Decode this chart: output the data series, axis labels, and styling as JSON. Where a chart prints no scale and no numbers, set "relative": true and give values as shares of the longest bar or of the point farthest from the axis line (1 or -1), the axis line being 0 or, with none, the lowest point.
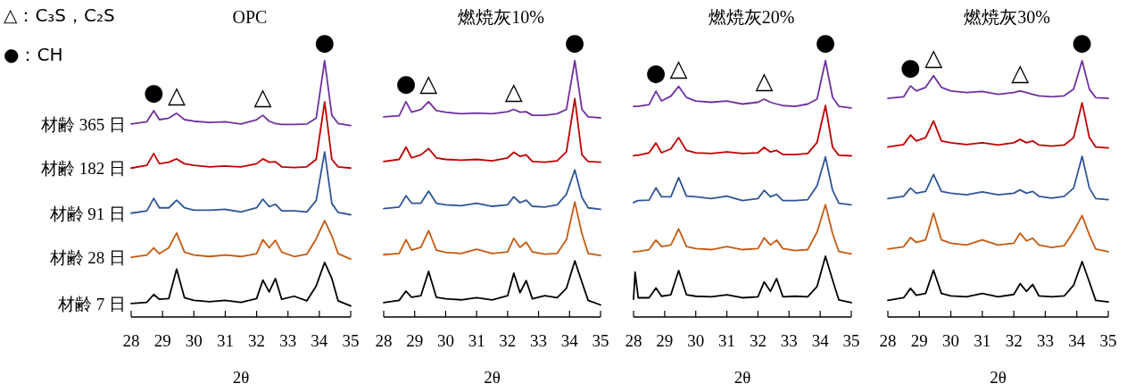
{
  "chart_data": [
    {
      "type": "line",
      "title": "OPC",
      "xlabel": "2θ",
      "relative": true,
      "legend": false,
      "tick_labels": "x",
      "xlim": [
        28,
        35
      ],
      "xticks": [
        28,
        29,
        30,
        31,
        32,
        33,
        34,
        35
      ],
      "x": [
        28,
        28.5,
        28.72,
        28.9,
        29.2,
        29.45,
        29.7,
        30,
        30.5,
        31,
        31.5,
        32,
        32.2,
        32.4,
        32.6,
        32.8,
        33.2,
        33.6,
        33.9,
        34.17,
        34.4,
        34.6,
        35
      ],
      "series": [
        {
          "name": "材齢 365 日",
          "color": "#7030a0",
          "values": [
            0.753,
            0.762,
            0.805,
            0.77,
            0.776,
            0.795,
            0.77,
            0.764,
            0.759,
            0.762,
            0.753,
            0.77,
            0.787,
            0.764,
            0.755,
            0.751,
            0.751,
            0.753,
            0.776,
            1.0,
            0.787,
            0.755,
            0.747
          ]
        },
        {
          "name": "材齢 182 日",
          "color": "#c00000",
          "values": [
            0.581,
            0.592,
            0.638,
            0.598,
            0.604,
            0.617,
            0.598,
            0.592,
            0.586,
            0.589,
            0.586,
            0.598,
            0.617,
            0.604,
            0.606,
            0.586,
            0.583,
            0.586,
            0.615,
            0.839,
            0.615,
            0.586,
            0.581
          ]
        },
        {
          "name": "材齢 91 日",
          "color": "#2f5597",
          "values": [
            0.405,
            0.414,
            0.463,
            0.426,
            0.426,
            0.456,
            0.426,
            0.417,
            0.417,
            0.42,
            0.41,
            0.426,
            0.46,
            0.431,
            0.44,
            0.414,
            0.414,
            0.41,
            0.454,
            0.644,
            0.443,
            0.408,
            0.399
          ]
        },
        {
          "name": "材齢 28 日",
          "color": "#c55a11",
          "values": [
            0.233,
            0.242,
            0.27,
            0.247,
            0.27,
            0.328,
            0.253,
            0.242,
            0.236,
            0.242,
            0.236,
            0.247,
            0.302,
            0.27,
            0.299,
            0.253,
            0.236,
            0.245,
            0.305,
            0.376,
            0.316,
            0.247,
            0.226
          ]
        },
        {
          "name": "材齢 7 日",
          "color": "#000000",
          "values": [
            0.053,
            0.057,
            0.088,
            0.069,
            0.072,
            0.187,
            0.075,
            0.065,
            0.06,
            0.065,
            0.057,
            0.072,
            0.144,
            0.098,
            0.15,
            0.069,
            0.081,
            0.063,
            0.121,
            0.213,
            0.15,
            0.063,
            0.043
          ]
        }
      ],
      "annotations": [
        "△：C₃S，C₂S",
        "●：CH",
        {
          "text": "●",
          "x": 28.72,
          "y": 0.805
        },
        {
          "text": "△",
          "x": 29.45,
          "y": 0.795
        },
        {
          "text": "△",
          "x": 32.2,
          "y": 0.787
        },
        {
          "text": "●",
          "x": 34.17,
          "y": 1.0
        }
      ]
    },
    {
      "type": "line",
      "title": "燃焼灰10%",
      "xlabel": "2θ",
      "relative": true,
      "tick_labels": "x",
      "xlim": [
        28,
        35
      ],
      "xticks": [
        28,
        29,
        30,
        31,
        32,
        33,
        34,
        35
      ],
      "x": [
        28,
        28.5,
        28.72,
        28.9,
        29.2,
        29.45,
        29.7,
        30,
        30.5,
        31,
        31.5,
        32,
        32.2,
        32.4,
        32.6,
        32.8,
        33.2,
        33.6,
        33.9,
        34.17,
        34.4,
        34.6,
        35
      ],
      "series": [
        {
          "color": "#7030a0",
          "values": [
            0.781,
            0.785,
            0.84,
            0.799,
            0.81,
            0.84,
            0.805,
            0.799,
            0.793,
            0.796,
            0.793,
            0.801,
            0.81,
            0.799,
            0.801,
            0.787,
            0.787,
            0.793,
            0.81,
            1.0,
            0.81,
            0.781,
            0.777
          ]
        },
        {
          "color": "#c00000",
          "values": [
            0.607,
            0.615,
            0.663,
            0.621,
            0.633,
            0.657,
            0.621,
            0.615,
            0.612,
            0.615,
            0.609,
            0.621,
            0.643,
            0.627,
            0.633,
            0.607,
            0.604,
            0.609,
            0.645,
            0.852,
            0.633,
            0.607,
            0.604
          ]
        },
        {
          "color": "#2f5597",
          "values": [
            0.423,
            0.429,
            0.473,
            0.444,
            0.444,
            0.491,
            0.444,
            0.438,
            0.434,
            0.444,
            0.432,
            0.438,
            0.469,
            0.446,
            0.456,
            0.432,
            0.429,
            0.438,
            0.479,
            0.574,
            0.467,
            0.426,
            0.42
          ]
        },
        {
          "color": "#c55a11",
          "values": [
            0.243,
            0.248,
            0.302,
            0.261,
            0.272,
            0.337,
            0.261,
            0.252,
            0.248,
            0.264,
            0.248,
            0.254,
            0.307,
            0.272,
            0.292,
            0.254,
            0.245,
            0.248,
            0.302,
            0.449,
            0.325,
            0.248,
            0.24
          ]
        },
        {
          "color": "#000000",
          "values": [
            0.056,
            0.065,
            0.101,
            0.077,
            0.083,
            0.178,
            0.077,
            0.071,
            0.067,
            0.075,
            0.067,
            0.083,
            0.171,
            0.095,
            0.142,
            0.071,
            0.083,
            0.075,
            0.112,
            0.219,
            0.136,
            0.065,
            0.047
          ]
        }
      ],
      "annotations": [
        {
          "text": "●",
          "x": 28.72,
          "y": 0.84
        },
        {
          "text": "△",
          "x": 29.45,
          "y": 0.84
        },
        {
          "text": "△",
          "x": 32.2,
          "y": 0.81
        },
        {
          "text": "●",
          "x": 34.17,
          "y": 1.0
        }
      ]
    },
    {
      "type": "line",
      "title": "燃焼灰20%",
      "xlabel": "2θ",
      "relative": true,
      "tick_labels": "x",
      "xlim": [
        28,
        35
      ],
      "xticks": [
        28,
        29,
        30,
        31,
        32,
        33,
        34,
        35
      ],
      "x": [
        28,
        28.05,
        28.15,
        28.5,
        28.72,
        28.9,
        29.2,
        29.45,
        29.7,
        30,
        30.5,
        31,
        31.5,
        32,
        32.2,
        32.4,
        32.6,
        32.8,
        33.2,
        33.6,
        33.9,
        34.17,
        34.4,
        34.6,
        35
      ],
      "series": [
        {
          "color": "#7030a0",
          "values": [
            0.822,
            0.822,
            0.822,
            0.829,
            0.881,
            0.843,
            0.862,
            0.9,
            0.857,
            0.843,
            0.838,
            0.843,
            0.831,
            0.838,
            0.85,
            0.838,
            0.831,
            0.825,
            0.822,
            0.831,
            0.85,
            1.0,
            0.857,
            0.822,
            0.816
          ]
        },
        {
          "color": "#c00000",
          "values": [
            0.629,
            0.631,
            0.631,
            0.641,
            0.679,
            0.641,
            0.656,
            0.7,
            0.65,
            0.641,
            0.638,
            0.644,
            0.638,
            0.641,
            0.662,
            0.644,
            0.65,
            0.634,
            0.634,
            0.638,
            0.681,
            0.825,
            0.662,
            0.631,
            0.629
          ]
        },
        {
          "color": "#2f5597",
          "values": [
            0.446,
            0.45,
            0.454,
            0.456,
            0.504,
            0.469,
            0.469,
            0.544,
            0.472,
            0.469,
            0.462,
            0.472,
            0.454,
            0.462,
            0.494,
            0.469,
            0.479,
            0.454,
            0.454,
            0.458,
            0.512,
            0.625,
            0.494,
            0.444,
            0.438
          ]
        },
        {
          "color": "#c55a11",
          "values": [
            0.253,
            0.256,
            0.256,
            0.263,
            0.3,
            0.275,
            0.281,
            0.344,
            0.275,
            0.267,
            0.263,
            0.275,
            0.263,
            0.267,
            0.309,
            0.281,
            0.3,
            0.267,
            0.259,
            0.263,
            0.331,
            0.438,
            0.325,
            0.256,
            0.246
          ]
        },
        {
          "color": "#000000",
          "values": [
            0.069,
            0.175,
            0.075,
            0.075,
            0.113,
            0.081,
            0.087,
            0.181,
            0.087,
            0.081,
            0.079,
            0.087,
            0.075,
            0.079,
            0.137,
            0.1,
            0.15,
            0.079,
            0.081,
            0.079,
            0.119,
            0.237,
            0.144,
            0.067,
            0.056
          ]
        }
      ],
      "annotations": [
        {
          "text": "●",
          "x": 28.72,
          "y": 0.881
        },
        {
          "text": "△",
          "x": 29.45,
          "y": 0.9
        },
        {
          "text": "△",
          "x": 32.2,
          "y": 0.85
        },
        {
          "text": "●",
          "x": 34.17,
          "y": 1.0
        }
      ]
    },
    {
      "type": "line",
      "title": "燃焼灰30%",
      "xlabel": "2θ",
      "relative": true,
      "tick_labels": "x",
      "xlim": [
        28,
        35
      ],
      "xticks": [
        28,
        29,
        30,
        31,
        32,
        33,
        34,
        35
      ],
      "x": [
        28,
        28.5,
        28.72,
        28.9,
        29.2,
        29.45,
        29.7,
        30,
        30.5,
        31,
        31.5,
        32,
        32.2,
        32.4,
        32.6,
        32.8,
        33.2,
        33.6,
        33.9,
        34.17,
        34.4,
        34.6,
        35
      ],
      "series": [
        {
          "color": "#7030a0",
          "values": [
            0.853,
            0.859,
            0.902,
            0.882,
            0.896,
            0.942,
            0.896,
            0.882,
            0.876,
            0.88,
            0.869,
            0.876,
            0.882,
            0.876,
            0.869,
            0.863,
            0.859,
            0.863,
            0.889,
            1.0,
            0.889,
            0.856,
            0.853
          ]
        },
        {
          "color": "#c00000",
          "values": [
            0.663,
            0.673,
            0.71,
            0.687,
            0.7,
            0.765,
            0.687,
            0.68,
            0.673,
            0.68,
            0.671,
            0.68,
            0.693,
            0.68,
            0.687,
            0.671,
            0.667,
            0.671,
            0.7,
            0.836,
            0.7,
            0.663,
            0.66
          ]
        },
        {
          "color": "#2f5597",
          "values": [
            0.462,
            0.471,
            0.503,
            0.483,
            0.49,
            0.556,
            0.49,
            0.483,
            0.477,
            0.488,
            0.477,
            0.483,
            0.496,
            0.483,
            0.49,
            0.471,
            0.464,
            0.471,
            0.503,
            0.627,
            0.503,
            0.462,
            0.458
          ]
        },
        {
          "color": "#c55a11",
          "values": [
            0.265,
            0.274,
            0.31,
            0.291,
            0.301,
            0.405,
            0.301,
            0.288,
            0.281,
            0.301,
            0.281,
            0.288,
            0.327,
            0.297,
            0.307,
            0.281,
            0.271,
            0.278,
            0.334,
            0.396,
            0.32,
            0.265,
            0.255
          ]
        },
        {
          "color": "#000000",
          "values": [
            0.065,
            0.075,
            0.112,
            0.085,
            0.092,
            0.183,
            0.092,
            0.082,
            0.079,
            0.092,
            0.079,
            0.088,
            0.13,
            0.1,
            0.127,
            0.082,
            0.079,
            0.082,
            0.124,
            0.216,
            0.137,
            0.065,
            0.059
          ]
        }
      ],
      "annotations": [
        {
          "text": "●",
          "x": 28.72,
          "y": 0.902
        },
        {
          "text": "△",
          "x": 29.45,
          "y": 0.942
        },
        {
          "text": "△",
          "x": 32.2,
          "y": 0.882
        },
        {
          "text": "●",
          "x": 34.17,
          "y": 1.0
        }
      ]
    }
  ]
}
